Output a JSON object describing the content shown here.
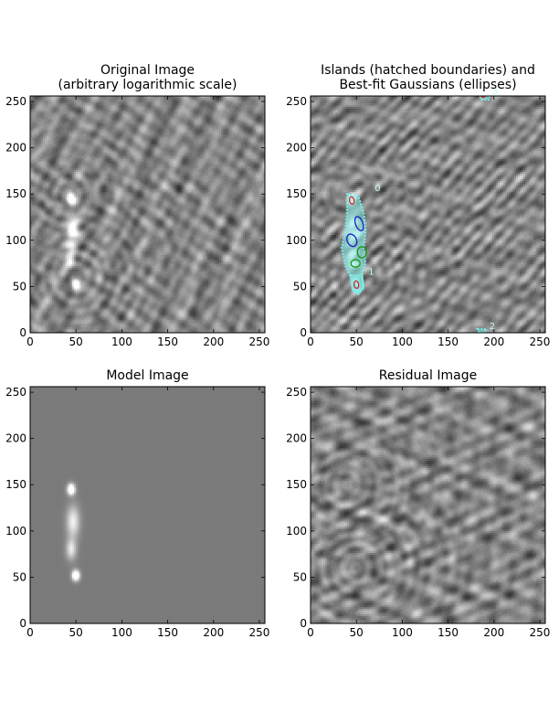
{
  "figure": {
    "background": "#ffffff",
    "image_colormap": "gray"
  },
  "colors": {
    "island_hatch": "#7fe9e4",
    "island_label": "#c8f7f4",
    "gauss_blue": "#1a1acc",
    "gauss_green": "#0f9a0f",
    "gauss_red": "#dd2222",
    "model_bg": "#7a7a7a"
  },
  "chart_data": [
    {
      "type": "heatmap",
      "title_lines": [
        "Original Image",
        "(arbitrary logarithmic scale)"
      ],
      "xlim": [
        0,
        256
      ],
      "ylim": [
        0,
        256
      ],
      "xticks": [
        "0",
        "50",
        "100",
        "150",
        "200",
        "250"
      ],
      "yticks": [
        "0",
        "50",
        "100",
        "150",
        "200",
        "250"
      ],
      "grid": false,
      "legend": "none",
      "background_style": "noisy-ripple",
      "sources": [
        {
          "x": 45,
          "y": 145,
          "sx": 3,
          "sy": 4,
          "amp": 1.0
        },
        {
          "x": 50,
          "y": 52,
          "sx": 3,
          "sy": 4,
          "amp": 1.0
        },
        {
          "x": 47,
          "y": 110,
          "sx": 5,
          "sy": 12,
          "amp": 0.55
        },
        {
          "x": 45,
          "y": 80,
          "sx": 4,
          "sy": 8,
          "amp": 0.5
        }
      ]
    },
    {
      "type": "heatmap",
      "title_lines": [
        "Islands (hatched boundaries) and",
        "Best-fit Gaussians (ellipses)"
      ],
      "xlim": [
        0,
        256
      ],
      "ylim": [
        0,
        256
      ],
      "xticks": [
        "0",
        "50",
        "100",
        "150",
        "200",
        "250"
      ],
      "yticks": [
        "0",
        "50",
        "100",
        "150",
        "200",
        "250"
      ],
      "grid": false,
      "legend": "none",
      "background_style": "noisy-ripple",
      "sources": [
        {
          "x": 45,
          "y": 145,
          "sx": 3,
          "sy": 4,
          "amp": 1.0
        },
        {
          "x": 50,
          "y": 52,
          "sx": 3,
          "sy": 4,
          "amp": 1.0
        },
        {
          "x": 47,
          "y": 110,
          "sx": 5,
          "sy": 12,
          "amp": 0.55
        },
        {
          "x": 45,
          "y": 80,
          "sx": 4,
          "sy": 8,
          "amp": 0.5
        }
      ],
      "islands": [
        {
          "id": "0",
          "label_x": 70,
          "label_y": 153,
          "points": [
            [
              40,
              150
            ],
            [
              52,
              148
            ],
            [
              58,
              130
            ],
            [
              60,
              110
            ],
            [
              58,
              92
            ],
            [
              60,
              75
            ],
            [
              56,
              62
            ],
            [
              58,
              48
            ],
            [
              52,
              42
            ],
            [
              46,
              46
            ],
            [
              44,
              60
            ],
            [
              38,
              72
            ],
            [
              34,
              92
            ],
            [
              38,
              110
            ],
            [
              40,
              130
            ]
          ]
        },
        {
          "id": "1",
          "label_x": 63,
          "label_y": 63,
          "points": [
            [
              44,
              62
            ],
            [
              56,
              62
            ],
            [
              58,
              50
            ],
            [
              52,
              42
            ],
            [
              46,
              46
            ]
          ]
        },
        {
          "id": "2",
          "label_x": 195,
          "label_y": 4,
          "points": [
            [
              182,
              4
            ],
            [
              192,
              4
            ],
            [
              190,
              0
            ],
            [
              184,
              0
            ]
          ]
        },
        {
          "id": "3",
          "label_x": 198,
          "label_y": 258,
          "points": [
            [
              184,
              258
            ],
            [
              196,
              258
            ],
            [
              194,
              252
            ],
            [
              186,
              252
            ]
          ]
        }
      ],
      "gaussians": [
        {
          "x": 45,
          "y": 143,
          "rx": 2.5,
          "ry": 4,
          "angle": 10,
          "color": "red"
        },
        {
          "x": 53,
          "y": 118,
          "rx": 4,
          "ry": 8,
          "angle": 20,
          "color": "blue"
        },
        {
          "x": 45,
          "y": 100,
          "rx": 5,
          "ry": 7,
          "angle": 25,
          "color": "blue"
        },
        {
          "x": 56,
          "y": 87,
          "rx": 5,
          "ry": 6,
          "angle": 0,
          "color": "green"
        },
        {
          "x": 49,
          "y": 75,
          "rx": 5,
          "ry": 4,
          "angle": 0,
          "color": "green"
        },
        {
          "x": 50,
          "y": 52,
          "rx": 2.5,
          "ry": 4,
          "angle": 10,
          "color": "red"
        },
        {
          "x": 188,
          "y": 256,
          "rx": 2,
          "ry": 1.5,
          "angle": 0,
          "color": "red"
        }
      ]
    },
    {
      "type": "heatmap",
      "title_lines": [
        "Model Image"
      ],
      "xlim": [
        0,
        256
      ],
      "ylim": [
        0,
        256
      ],
      "xticks": [
        "0",
        "50",
        "100",
        "150",
        "200",
        "250"
      ],
      "yticks": [
        "0",
        "50",
        "100",
        "150",
        "200",
        "250"
      ],
      "grid": false,
      "legend": "none",
      "background_style": "flat",
      "sources": [
        {
          "x": 45,
          "y": 145,
          "sx": 3,
          "sy": 4,
          "amp": 1.0
        },
        {
          "x": 50,
          "y": 52,
          "sx": 3,
          "sy": 4,
          "amp": 1.0
        },
        {
          "x": 47,
          "y": 110,
          "sx": 5,
          "sy": 12,
          "amp": 0.55
        },
        {
          "x": 45,
          "y": 80,
          "sx": 4,
          "sy": 8,
          "amp": 0.5
        }
      ]
    },
    {
      "type": "heatmap",
      "title_lines": [
        "Residual Image"
      ],
      "xlim": [
        0,
        256
      ],
      "ylim": [
        0,
        256
      ],
      "xticks": [
        "0",
        "50",
        "100",
        "150",
        "200",
        "250"
      ],
      "yticks": [
        "0",
        "50",
        "100",
        "150",
        "200",
        "250"
      ],
      "grid": false,
      "legend": "none",
      "background_style": "noisy-ripple",
      "sources": []
    }
  ]
}
